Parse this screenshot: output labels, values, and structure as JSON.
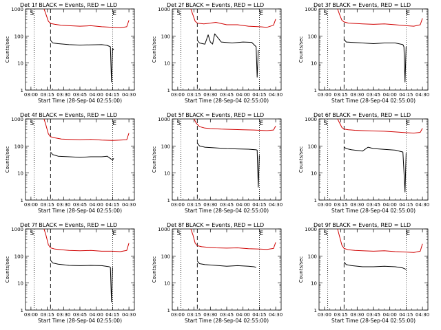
{
  "figure": {
    "xlabel": "Start Time (28-Sep-04 02:55:00)",
    "ylabel": "Counts/sec"
  },
  "colors": {
    "events": "#000000",
    "lld": "#d00000",
    "axes": "#000000"
  },
  "chart_data": [
    {
      "type": "line",
      "title": "Det 1f BLACK = Events, RED = LLD",
      "xlabel": "Start Time (28-Sep-04 02:55:00)",
      "ylabel": "Counts/sec",
      "x_ticks": [
        "03:00",
        "03:15",
        "03:30",
        "03:45",
        "04:00",
        "04:15",
        "04:30"
      ],
      "y_ticks": [
        "1",
        "10",
        "100",
        "1000"
      ],
      "y_scale": "log",
      "xlim_minutes": [
        0,
        100
      ],
      "ylim": [
        1,
        1000
      ],
      "markers": {
        "S": "03:01",
        "E": "04:15"
      },
      "dotted_lines": [
        "03:03",
        "04:15"
      ],
      "dashed_lines": [
        "03:18"
      ],
      "series": [
        {
          "name": "LLD",
          "color": "#d00000",
          "x": [
            "03:12",
            "03:14",
            "03:16",
            "03:18",
            "03:22",
            "03:28",
            "03:35",
            "03:45",
            "03:55",
            "04:05",
            "04:15",
            "04:22",
            "04:28",
            "04:30"
          ],
          "y": [
            1000,
            600,
            350,
            290,
            270,
            250,
            240,
            230,
            240,
            220,
            210,
            200,
            220,
            380
          ]
        },
        {
          "name": "Events",
          "color": "#000000",
          "x": [
            "03:18",
            "03:20",
            "03:25",
            "03:35",
            "03:45",
            "03:55",
            "04:05",
            "04:10",
            "04:13",
            "04:14",
            "04:15",
            "04:16"
          ],
          "y": [
            70,
            55,
            52,
            48,
            46,
            47,
            48,
            45,
            40,
            2,
            35,
            30
          ]
        }
      ]
    },
    {
      "type": "line",
      "title": "Det 2f BLACK = Events, RED = LLD",
      "xlabel": "Start Time (28-Sep-04 02:55:00)",
      "ylabel": "Counts/sec",
      "x_ticks": [
        "03:00",
        "03:15",
        "03:30",
        "03:45",
        "04:00",
        "04:15",
        "04:30"
      ],
      "y_ticks": [
        "1",
        "10",
        "100",
        "1000"
      ],
      "y_scale": "log",
      "xlim_minutes": [
        0,
        100
      ],
      "ylim": [
        1,
        1000
      ],
      "markers": {
        "S": "03:01",
        "E": "04:15"
      },
      "dotted_lines": [
        "03:03",
        "04:15"
      ],
      "dashed_lines": [
        "03:18"
      ],
      "series": [
        {
          "name": "LLD",
          "color": "#d00000",
          "x": [
            "03:12",
            "03:14",
            "03:16",
            "03:18",
            "03:24",
            "03:30",
            "03:35",
            "03:45",
            "03:55",
            "04:05",
            "04:15",
            "04:22",
            "04:28",
            "04:30"
          ],
          "y": [
            1000,
            600,
            350,
            300,
            280,
            300,
            320,
            260,
            260,
            230,
            220,
            210,
            250,
            420
          ]
        },
        {
          "name": "Events",
          "color": "#000000",
          "x": [
            "03:18",
            "03:20",
            "03:25",
            "03:28",
            "03:30",
            "03:32",
            "03:34",
            "03:40",
            "03:50",
            "04:00",
            "04:08",
            "04:12",
            "04:13",
            "04:14"
          ],
          "y": [
            70,
            55,
            50,
            110,
            60,
            50,
            120,
            60,
            55,
            60,
            58,
            40,
            3,
            30
          ]
        }
      ]
    },
    {
      "type": "line",
      "title": "Det 3f BLACK = Events, RED = LLD",
      "xlabel": "Start Time (28-Sep-04 02:55:00)",
      "ylabel": "Counts/sec",
      "x_ticks": [
        "03:00",
        "03:15",
        "03:30",
        "03:45",
        "04:00",
        "04:15",
        "04:30"
      ],
      "y_ticks": [
        "1",
        "10",
        "100",
        "1000"
      ],
      "y_scale": "log",
      "xlim_minutes": [
        0,
        100
      ],
      "ylim": [
        1,
        1000
      ],
      "markers": {
        "S": "03:01",
        "E": "04:15"
      },
      "dotted_lines": [
        "03:03",
        "04:15"
      ],
      "dashed_lines": [
        "03:18"
      ],
      "series": [
        {
          "name": "LLD",
          "color": "#d00000",
          "x": [
            "03:12",
            "03:14",
            "03:16",
            "03:18",
            "03:22",
            "03:28",
            "03:35",
            "03:45",
            "03:55",
            "04:05",
            "04:15",
            "04:22",
            "04:28",
            "04:30"
          ],
          "y": [
            1000,
            600,
            380,
            330,
            300,
            290,
            280,
            270,
            280,
            260,
            240,
            230,
            260,
            450
          ]
        },
        {
          "name": "Events",
          "color": "#000000",
          "x": [
            "03:18",
            "03:20",
            "03:25",
            "03:35",
            "03:45",
            "03:55",
            "04:05",
            "04:12",
            "04:13",
            "04:14",
            "04:15"
          ],
          "y": [
            75,
            60,
            58,
            55,
            52,
            55,
            55,
            48,
            40,
            2,
            40
          ]
        }
      ]
    },
    {
      "type": "line",
      "title": "Det 4f BLACK = Events, RED = LLD",
      "xlabel": "Start Time (28-Sep-04 02:55:00)",
      "ylabel": "Counts/sec",
      "x_ticks": [
        "03:00",
        "03:15",
        "03:30",
        "03:45",
        "04:00",
        "04:15",
        "04:30"
      ],
      "y_ticks": [
        "1",
        "10",
        "100",
        "1000"
      ],
      "y_scale": "log",
      "xlim_minutes": [
        0,
        100
      ],
      "ylim": [
        1,
        1000
      ],
      "markers": {
        "S": "03:01",
        "E": "04:15"
      },
      "dotted_lines": [
        "03:03",
        "04:15"
      ],
      "dashed_lines": [
        "03:18"
      ],
      "series": [
        {
          "name": "LLD",
          "color": "#d00000",
          "x": [
            "03:12",
            "03:14",
            "03:16",
            "03:18",
            "03:22",
            "03:28",
            "03:35",
            "03:45",
            "03:55",
            "04:05",
            "04:15",
            "04:22",
            "04:28",
            "04:30"
          ],
          "y": [
            1000,
            550,
            280,
            220,
            200,
            180,
            175,
            170,
            175,
            165,
            160,
            165,
            170,
            300
          ]
        },
        {
          "name": "Events",
          "color": "#000000",
          "x": [
            "03:18",
            "03:20",
            "03:25",
            "03:35",
            "03:45",
            "03:55",
            "04:05",
            "04:10",
            "04:15",
            "04:16"
          ],
          "y": [
            60,
            48,
            42,
            40,
            38,
            40,
            40,
            42,
            30,
            35
          ]
        }
      ]
    },
    {
      "type": "line",
      "title": "Det 5f BLACK = Events, RED = LLD",
      "xlabel": "Start Time (28-Sep-04 02:55:00)",
      "ylabel": "Counts/sec",
      "x_ticks": [
        "03:00",
        "03:15",
        "03:30",
        "03:45",
        "04:00",
        "04:15",
        "04:30"
      ],
      "y_ticks": [
        "1",
        "10",
        "100",
        "1000"
      ],
      "y_scale": "log",
      "xlim_minutes": [
        0,
        100
      ],
      "ylim": [
        1,
        1000
      ],
      "markers": {
        "S": "03:01",
        "E": "04:15"
      },
      "dotted_lines": [
        "03:03",
        "04:15"
      ],
      "dashed_lines": [
        "03:18"
      ],
      "series": [
        {
          "name": "LLD",
          "color": "#d00000",
          "x": [
            "03:15",
            "03:17",
            "03:20",
            "03:25",
            "03:30",
            "03:40",
            "03:50",
            "04:00",
            "04:10",
            "04:15",
            "04:22",
            "04:28",
            "04:30"
          ],
          "y": [
            1000,
            700,
            520,
            460,
            440,
            420,
            410,
            400,
            390,
            380,
            370,
            390,
            550
          ]
        },
        {
          "name": "Events",
          "color": "#000000",
          "x": [
            "03:18",
            "03:20",
            "03:25",
            "03:35",
            "03:45",
            "03:55",
            "04:05",
            "04:12",
            "04:13",
            "04:14",
            "04:15"
          ],
          "y": [
            130,
            100,
            90,
            85,
            80,
            78,
            76,
            72,
            70,
            3,
            45
          ]
        }
      ]
    },
    {
      "type": "line",
      "title": "Det 6f BLACK = Events, RED = LLD",
      "xlabel": "Start Time (28-Sep-04 02:55:00)",
      "ylabel": "Counts/sec",
      "x_ticks": [
        "03:00",
        "03:15",
        "03:30",
        "03:45",
        "04:00",
        "04:15",
        "04:30"
      ],
      "y_ticks": [
        "1",
        "10",
        "100",
        "1000"
      ],
      "y_scale": "log",
      "xlim_minutes": [
        0,
        100
      ],
      "ylim": [
        1,
        1000
      ],
      "markers": {
        "S": "03:01",
        "E": "04:15"
      },
      "dotted_lines": [
        "03:03",
        "04:15"
      ],
      "dashed_lines": [
        "03:18"
      ],
      "series": [
        {
          "name": "LLD",
          "color": "#d00000",
          "x": [
            "03:12",
            "03:14",
            "03:16",
            "03:18",
            "03:22",
            "03:28",
            "03:35",
            "03:45",
            "03:55",
            "04:05",
            "04:15",
            "04:22",
            "04:28",
            "04:30"
          ],
          "y": [
            1000,
            700,
            480,
            420,
            400,
            380,
            370,
            360,
            350,
            330,
            310,
            300,
            320,
            450
          ]
        },
        {
          "name": "Events",
          "color": "#000000",
          "x": [
            "03:18",
            "03:20",
            "03:25",
            "03:35",
            "03:40",
            "03:45",
            "03:55",
            "04:05",
            "04:12",
            "04:14",
            "04:15"
          ],
          "y": [
            90,
            80,
            72,
            65,
            90,
            80,
            75,
            70,
            60,
            2,
            55
          ]
        }
      ]
    },
    {
      "type": "line",
      "title": "Det 7f BLACK = Events, RED = LLD",
      "xlabel": "Start Time (28-Sep-04 02:55:00)",
      "ylabel": "Counts/sec",
      "x_ticks": [
        "03:00",
        "03:15",
        "03:30",
        "03:45",
        "04:00",
        "04:15",
        "04:30"
      ],
      "y_ticks": [
        "1",
        "10",
        "100",
        "1000"
      ],
      "y_scale": "log",
      "xlim_minutes": [
        0,
        100
      ],
      "ylim": [
        1,
        1000
      ],
      "markers": {
        "S": "03:01",
        "E": "04:15"
      },
      "dotted_lines": [
        "03:03",
        "04:15"
      ],
      "dashed_lines": [
        "03:18"
      ],
      "series": [
        {
          "name": "LLD",
          "color": "#d00000",
          "x": [
            "03:12",
            "03:14",
            "03:16",
            "03:18",
            "03:22",
            "03:28",
            "03:35",
            "03:45",
            "03:55",
            "04:05",
            "04:15",
            "04:22",
            "04:28",
            "04:30"
          ],
          "y": [
            1000,
            550,
            260,
            200,
            180,
            170,
            160,
            155,
            160,
            150,
            150,
            145,
            160,
            300
          ]
        },
        {
          "name": "Events",
          "color": "#000000",
          "x": [
            "03:18",
            "03:20",
            "03:25",
            "03:35",
            "03:45",
            "03:55",
            "04:05",
            "04:12",
            "04:13",
            "04:14",
            "04:15"
          ],
          "y": [
            70,
            55,
            50,
            45,
            44,
            45,
            44,
            40,
            38,
            2,
            38
          ]
        }
      ]
    },
    {
      "type": "line",
      "title": "Det 8f BLACK = Events, RED = LLD",
      "xlabel": "Start Time (28-Sep-04 02:55:00)",
      "ylabel": "Counts/sec",
      "x_ticks": [
        "03:00",
        "03:15",
        "03:30",
        "03:45",
        "04:00",
        "04:15",
        "04:30"
      ],
      "y_ticks": [
        "1",
        "10",
        "100",
        "1000"
      ],
      "y_scale": "log",
      "xlim_minutes": [
        0,
        100
      ],
      "ylim": [
        1,
        1000
      ],
      "markers": {
        "S": "03:01",
        "E": "04:15"
      },
      "dotted_lines": [
        "03:03",
        "04:15"
      ],
      "dashed_lines": [
        "03:18"
      ],
      "series": [
        {
          "name": "LLD",
          "color": "#d00000",
          "x": [
            "03:12",
            "03:14",
            "03:16",
            "03:18",
            "03:22",
            "03:28",
            "03:35",
            "03:45",
            "03:55",
            "04:05",
            "04:15",
            "04:22",
            "04:28",
            "04:30"
          ],
          "y": [
            1000,
            600,
            300,
            240,
            220,
            210,
            200,
            195,
            200,
            185,
            180,
            175,
            190,
            320
          ]
        },
        {
          "name": "Events",
          "color": "#000000",
          "x": [
            "03:18",
            "03:20",
            "03:25",
            "03:35",
            "03:45",
            "03:55",
            "04:05",
            "04:10",
            "04:12"
          ],
          "y": [
            65,
            52,
            48,
            45,
            42,
            44,
            42,
            40,
            38
          ]
        }
      ]
    },
    {
      "type": "line",
      "title": "Det 9f BLACK = Events, RED = LLD",
      "xlabel": "Start Time (28-Sep-04 02:55:00)",
      "ylabel": "Counts/sec",
      "x_ticks": [
        "03:00",
        "03:15",
        "03:30",
        "03:45",
        "04:00",
        "04:15",
        "04:30"
      ],
      "y_ticks": [
        "1",
        "10",
        "100",
        "1000"
      ],
      "y_scale": "log",
      "xlim_minutes": [
        0,
        100
      ],
      "ylim": [
        1,
        1000
      ],
      "markers": {
        "S": "03:01",
        "E": "04:15"
      },
      "dotted_lines": [
        "03:03",
        "04:15"
      ],
      "dashed_lines": [
        "03:18"
      ],
      "series": [
        {
          "name": "LLD",
          "color": "#d00000",
          "x": [
            "03:12",
            "03:14",
            "03:16",
            "03:18",
            "03:22",
            "03:28",
            "03:35",
            "03:45",
            "03:55",
            "04:05",
            "04:15",
            "04:22",
            "04:28",
            "04:30"
          ],
          "y": [
            1000,
            500,
            250,
            190,
            170,
            160,
            155,
            150,
            155,
            145,
            140,
            135,
            150,
            280
          ]
        },
        {
          "name": "Events",
          "color": "#000000",
          "x": [
            "03:18",
            "03:20",
            "03:25",
            "03:35",
            "03:45",
            "03:55",
            "04:05",
            "04:12",
            "04:15"
          ],
          "y": [
            60,
            48,
            44,
            40,
            40,
            42,
            40,
            36,
            32
          ]
        }
      ]
    }
  ]
}
